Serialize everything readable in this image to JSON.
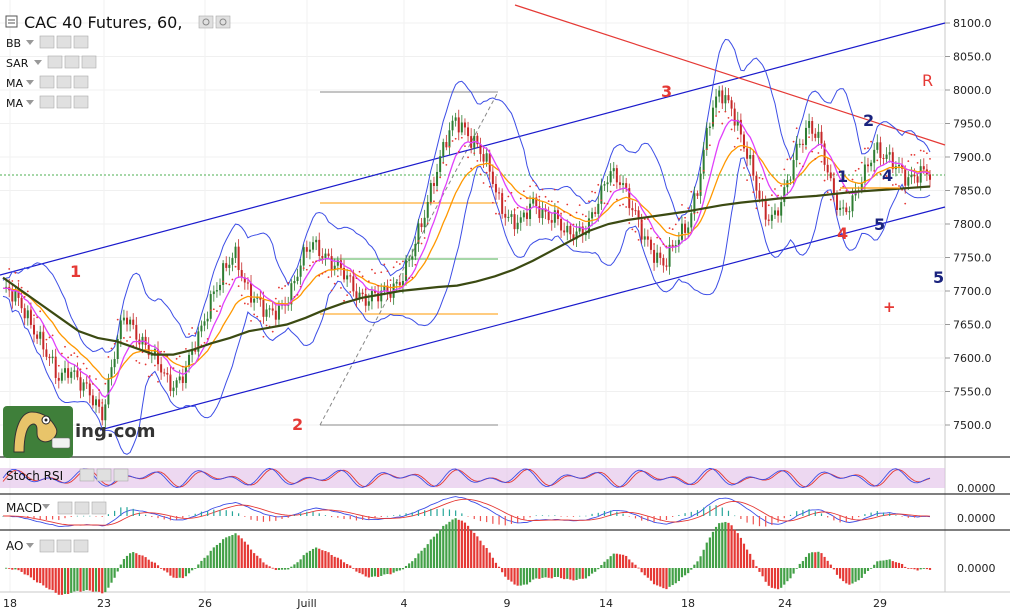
{
  "header": {
    "title": "CAC 40 Futures, 60,",
    "indicators": [
      "BB",
      "SAR",
      "MA",
      "MA"
    ]
  },
  "panels": {
    "stoch_label": "Stoch RSI",
    "macd_label": "MACD",
    "ao_label": "AO",
    "stoch_value": "0.0000",
    "macd_value": "0.0000",
    "ao_value": "0.0000"
  },
  "price_axis": [
    "8100.0",
    "8050.0",
    "8000.0",
    "7950.0",
    "7900.0",
    "7850.0",
    "7800.0",
    "7750.0",
    "7700.0",
    "7650.0",
    "7600.0",
    "7550.0",
    "7500.0"
  ],
  "time_axis": [
    "18",
    "23",
    "26",
    "Juill",
    "4",
    "9",
    "14",
    "18",
    "24",
    "29"
  ],
  "wave_labels": {
    "w1_left": "1",
    "w2": "2",
    "w3": "3",
    "r": "R",
    "w1_right": "1",
    "w2_right": "2",
    "w4_right": "4",
    "w4_red": "4",
    "w5_blue": "5",
    "w5": "5",
    "plus": "+"
  },
  "logo_text": "ing.com",
  "colors": {
    "up_candle": "#2e7d32",
    "down_candle": "#c62828",
    "channel": "#1a1acc",
    "resistance": "#e53935",
    "ma_long": "#3b4a12",
    "bollinger": "#3d4ee6",
    "sar": "#e53935",
    "ema_fast": "#e040fb",
    "ema_slow": "#ff9800"
  },
  "chart_data": {
    "type": "line",
    "title": "CAC 40 Futures, 60,",
    "ylim": [
      7460,
      8120
    ],
    "x_ticks": [
      "18",
      "23",
      "26",
      "Juill",
      "4",
      "9",
      "14",
      "18",
      "24",
      "29"
    ],
    "series": [
      {
        "values": [
          7700,
          7690,
          7672,
          7640,
          7600,
          7570,
          7590,
          7560,
          7540,
          7520,
          7600,
          7660,
          7640,
          7620,
          7590,
          7560,
          7570,
          7600,
          7640,
          7700,
          7730,
          7750,
          7710,
          7690,
          7660,
          7670,
          7700,
          7740,
          7770,
          7760,
          7740,
          7720,
          7700,
          7690,
          7690,
          7700,
          7720,
          7750,
          7800,
          7870,
          7920,
          7950,
          7940,
          7920,
          7880,
          7830,
          7810,
          7800,
          7830,
          7820,
          7810,
          7780,
          7790,
          7800,
          7830,
          7880,
          7870,
          7820,
          7780,
          7760,
          7740,
          7770,
          7800,
          7860,
          7950,
          8000,
          7980,
          7920,
          7870,
          7820,
          7810,
          7850,
          7920,
          7950,
          7920,
          7860,
          7820,
          7830,
          7870,
          7920,
          7900,
          7880,
          7870,
          7880,
          7870
        ]
      },
      {
        "values": [
          7720,
          7700,
          7680,
          7660,
          7640,
          7630,
          7625,
          7615,
          7605,
          7605,
          7612,
          7622,
          7630,
          7640,
          7645,
          7650,
          7660,
          7672,
          7682,
          7690,
          7695,
          7700,
          7703,
          7706,
          7708,
          7714,
          7722,
          7732,
          7745,
          7760,
          7775,
          7790,
          7800,
          7806,
          7810,
          7814,
          7818,
          7823,
          7828,
          7832,
          7835,
          7838,
          7840,
          7842,
          7845,
          7848,
          7850,
          7852,
          7854,
          7856
        ]
      }
    ],
    "annotations": [
      "1",
      "2",
      "3",
      "R",
      "1",
      "2",
      "4",
      "4",
      "5",
      "5",
      "+"
    ]
  }
}
